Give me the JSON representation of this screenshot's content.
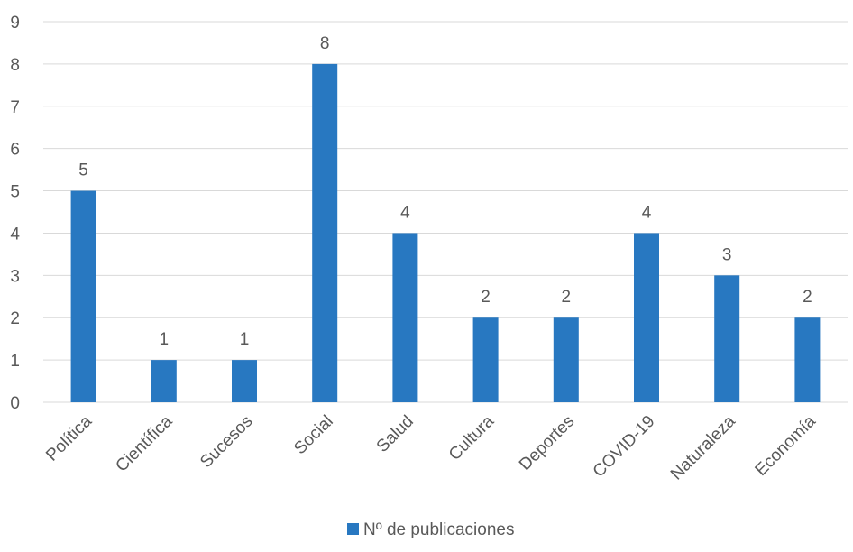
{
  "chart_data": {
    "type": "bar",
    "categories": [
      "Política",
      "Científica",
      "Sucesos",
      "Social",
      "Salud",
      "Cultura",
      "Deportes",
      "COVID-19",
      "Naturaleza",
      "Economía"
    ],
    "series": [
      {
        "name": "Nº de publicaciones",
        "values": [
          5,
          1,
          1,
          8,
          4,
          2,
          2,
          4,
          3,
          2
        ],
        "color": "#2878c1"
      }
    ],
    "ylim": [
      0,
      9
    ],
    "yticks": [
      "0",
      "1",
      "2",
      "3",
      "4",
      "5",
      "6",
      "7",
      "8",
      "9"
    ],
    "grid": true,
    "legend_position": "bottom",
    "data_labels": true
  }
}
